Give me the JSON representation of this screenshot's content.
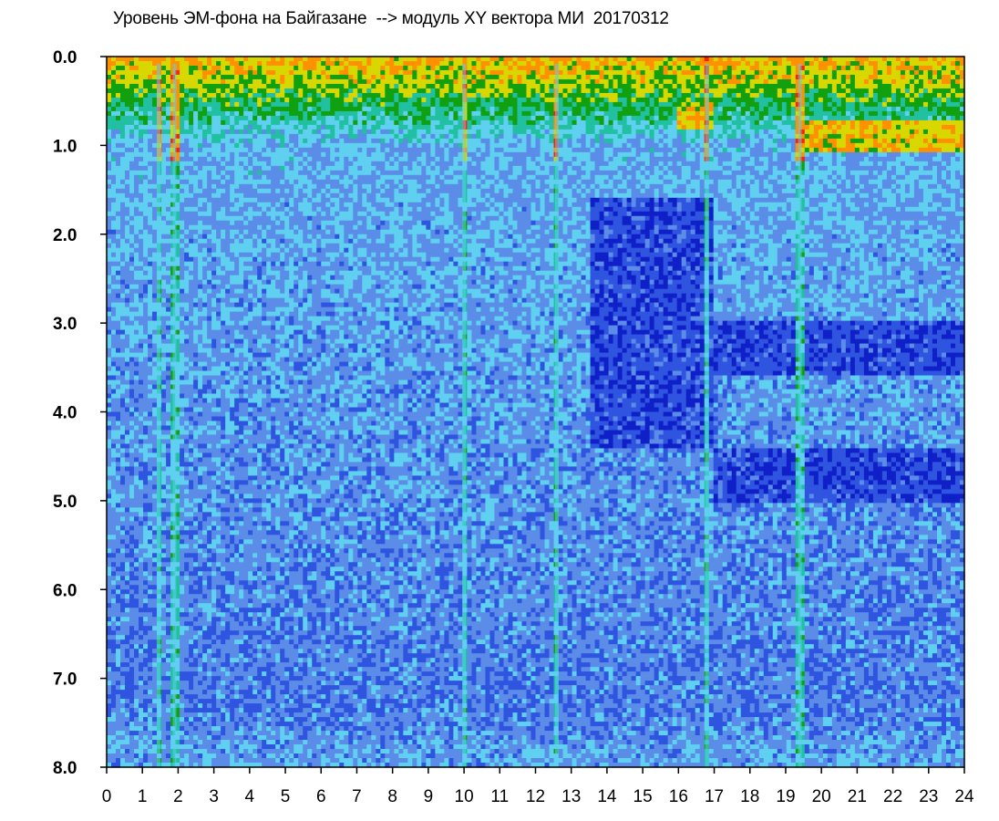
{
  "chart_data": {
    "type": "heatmap",
    "title": "Уровень ЭМ-фона на Байгазане  --> модуль XY вектора МИ  20170312",
    "xlabel": "",
    "ylabel": "",
    "xlim": [
      0,
      24
    ],
    "ylim": [
      8.0,
      0.0
    ],
    "x_ticks": [
      "0",
      "1",
      "2",
      "3",
      "4",
      "5",
      "6",
      "7",
      "8",
      "9",
      "10",
      "11",
      "12",
      "13",
      "14",
      "15",
      "16",
      "17",
      "18",
      "19",
      "20",
      "21",
      "22",
      "23",
      "24"
    ],
    "y_ticks": [
      "0.0",
      "1.0",
      "2.0",
      "3.0",
      "4.0",
      "5.0",
      "6.0",
      "7.0",
      "8.0"
    ],
    "grid": false,
    "colorscale": [
      "#1020c8",
      "#2f55e0",
      "#5b8ce8",
      "#5fd0f0",
      "#20c0a0",
      "#10a010",
      "#d8d800",
      "#ff9000",
      "#ff2000"
    ],
    "bright_stripes_hours": [
      1.45,
      1.9,
      10.0,
      12.6,
      16.8,
      19.4
    ],
    "features": [
      {
        "hours": [
          0,
          24
        ],
        "y_range": [
          0.0,
          0.3
        ],
        "level": "high"
      },
      {
        "hours": [
          0,
          24
        ],
        "y_range": [
          0.3,
          1.0
        ],
        "level": "medium"
      },
      {
        "hours": [
          0,
          24
        ],
        "y_range": [
          1.0,
          8.0
        ],
        "level": "low"
      },
      {
        "hours": [
          16.0,
          17.0
        ],
        "y_range": [
          0.5,
          0.8
        ],
        "level": "high"
      },
      {
        "hours": [
          19.5,
          24.0
        ],
        "y_range": [
          0.7,
          1.1
        ],
        "level": "high"
      },
      {
        "hours": [
          13.5,
          17.0
        ],
        "y_range": [
          1.6,
          4.4
        ],
        "level": "very_low"
      },
      {
        "hours": [
          17.0,
          24.0
        ],
        "y_range": [
          3.0,
          3.6
        ],
        "level": "very_low"
      },
      {
        "hours": [
          17.0,
          24.0
        ],
        "y_range": [
          4.4,
          5.0
        ],
        "level": "very_low"
      }
    ]
  }
}
